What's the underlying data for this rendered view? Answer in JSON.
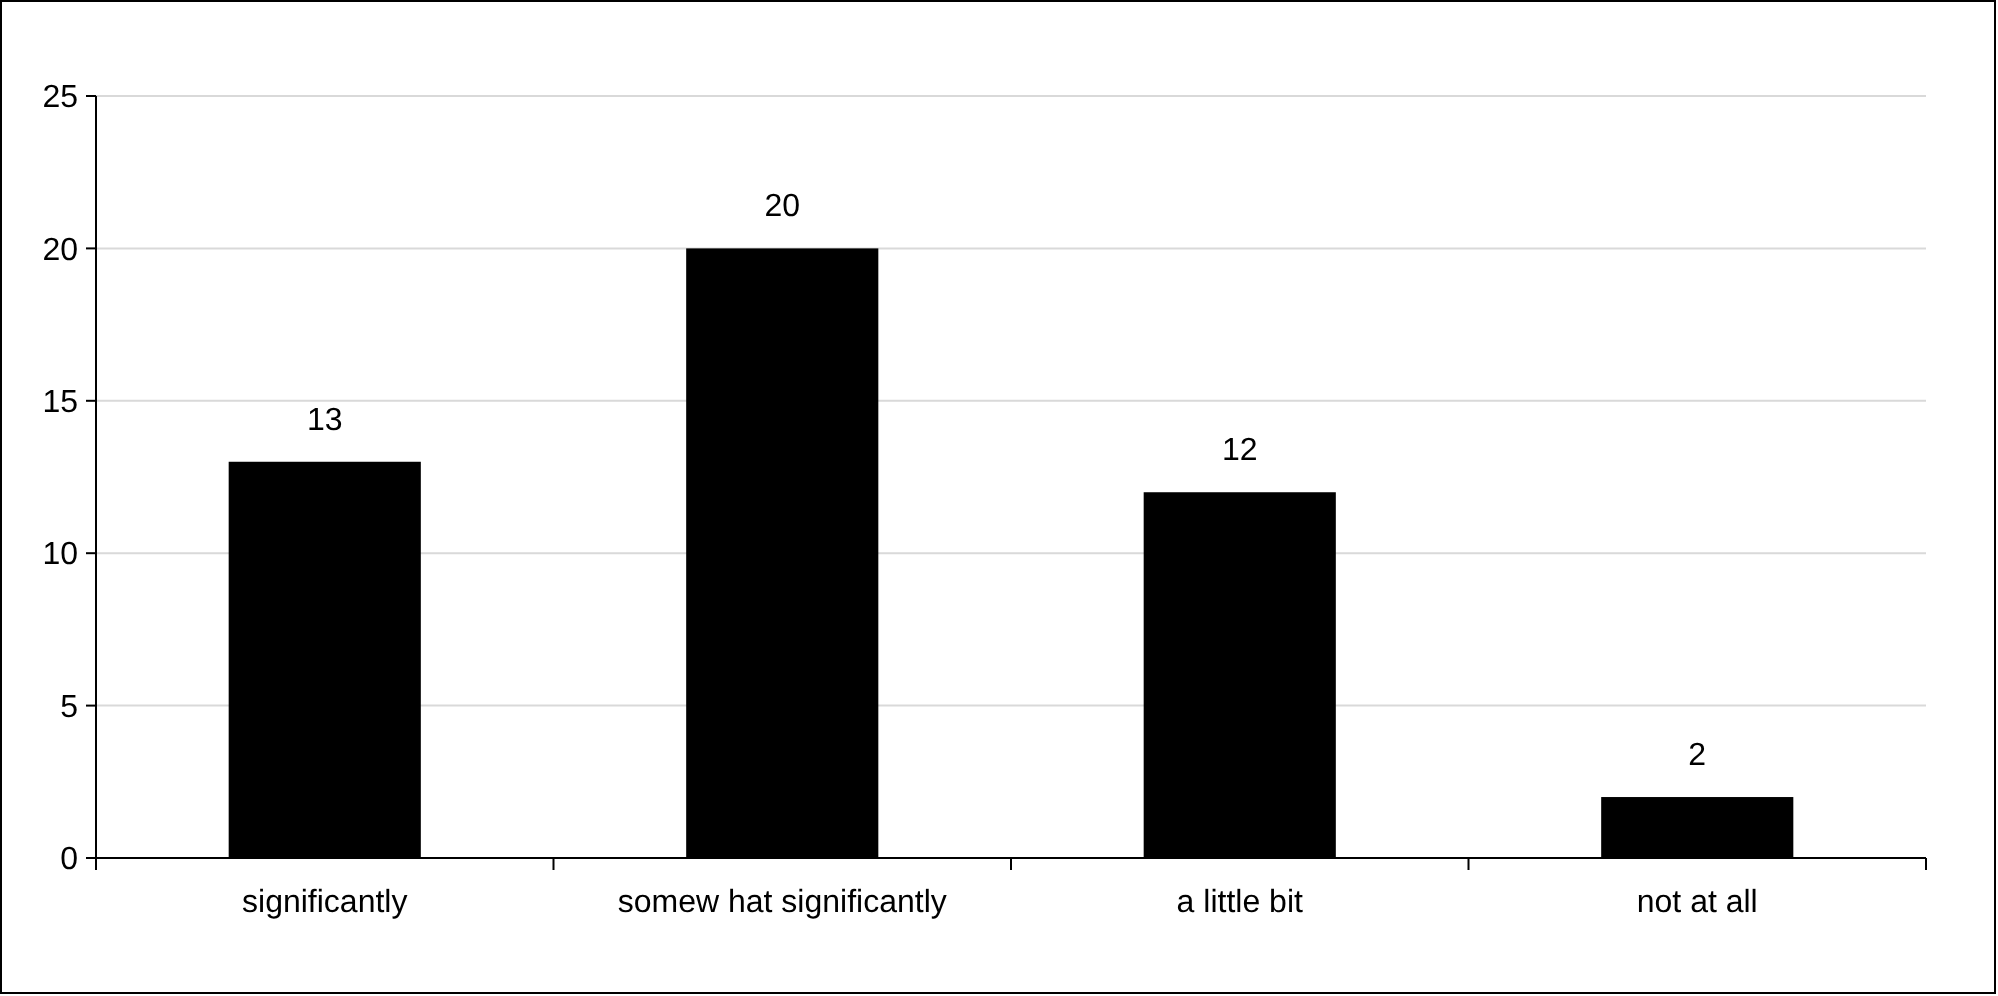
{
  "chart_data": {
    "type": "bar",
    "categories": [
      "significantly",
      "somew hat significantly",
      "a little bit",
      "not at all"
    ],
    "values": [
      13,
      20,
      12,
      2
    ],
    "color": "#000000",
    "ylim": [
      0,
      25
    ],
    "yticks": [
      0,
      5,
      10,
      15,
      20,
      25
    ],
    "grid": "y",
    "data_labels": true
  }
}
